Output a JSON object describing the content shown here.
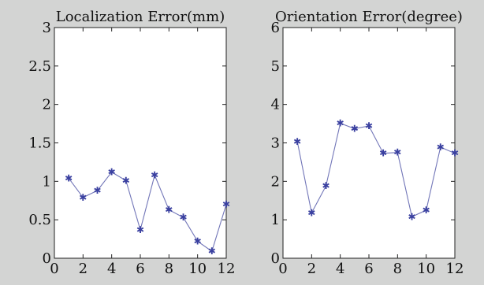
{
  "figure": {
    "background": "#d3d4d3"
  },
  "chart_data": [
    {
      "type": "line",
      "title": "Localization Error(mm)",
      "xlabel": "",
      "ylabel": "",
      "xlim": [
        0,
        12
      ],
      "ylim": [
        0,
        3
      ],
      "xticks": [
        0,
        2,
        4,
        6,
        8,
        10,
        12
      ],
      "yticks": [
        0,
        0.5,
        1,
        1.5,
        2,
        2.5,
        3
      ],
      "ytick_labels": [
        "0",
        "0.5",
        "1",
        "1.5",
        "2",
        "2.5",
        "3"
      ],
      "grid": false,
      "series": [
        {
          "color": "#7276b8",
          "marker": "*",
          "x": [
            1,
            2,
            3,
            4,
            5,
            6,
            7,
            8,
            9,
            10,
            11,
            12
          ],
          "y": [
            1.04,
            0.79,
            0.88,
            1.12,
            1.01,
            0.37,
            1.08,
            0.63,
            0.53,
            0.22,
            0.09,
            0.7
          ]
        }
      ]
    },
    {
      "type": "line",
      "title": "Orientation Error(degree)",
      "xlabel": "",
      "ylabel": "",
      "xlim": [
        0,
        12
      ],
      "ylim": [
        0,
        6
      ],
      "xticks": [
        0,
        2,
        4,
        6,
        8,
        10,
        12
      ],
      "yticks": [
        0,
        1,
        2,
        3,
        4,
        5,
        6
      ],
      "ytick_labels": [
        "0",
        "1",
        "2",
        "3",
        "4",
        "5",
        "6"
      ],
      "grid": false,
      "series": [
        {
          "color": "#7276b8",
          "marker": "*",
          "x": [
            1,
            2,
            3,
            4,
            5,
            6,
            7,
            8,
            9,
            10,
            11,
            12
          ],
          "y": [
            3.03,
            1.18,
            1.88,
            3.51,
            3.37,
            3.44,
            2.73,
            2.75,
            1.08,
            1.25,
            2.89,
            2.73
          ]
        }
      ]
    }
  ]
}
